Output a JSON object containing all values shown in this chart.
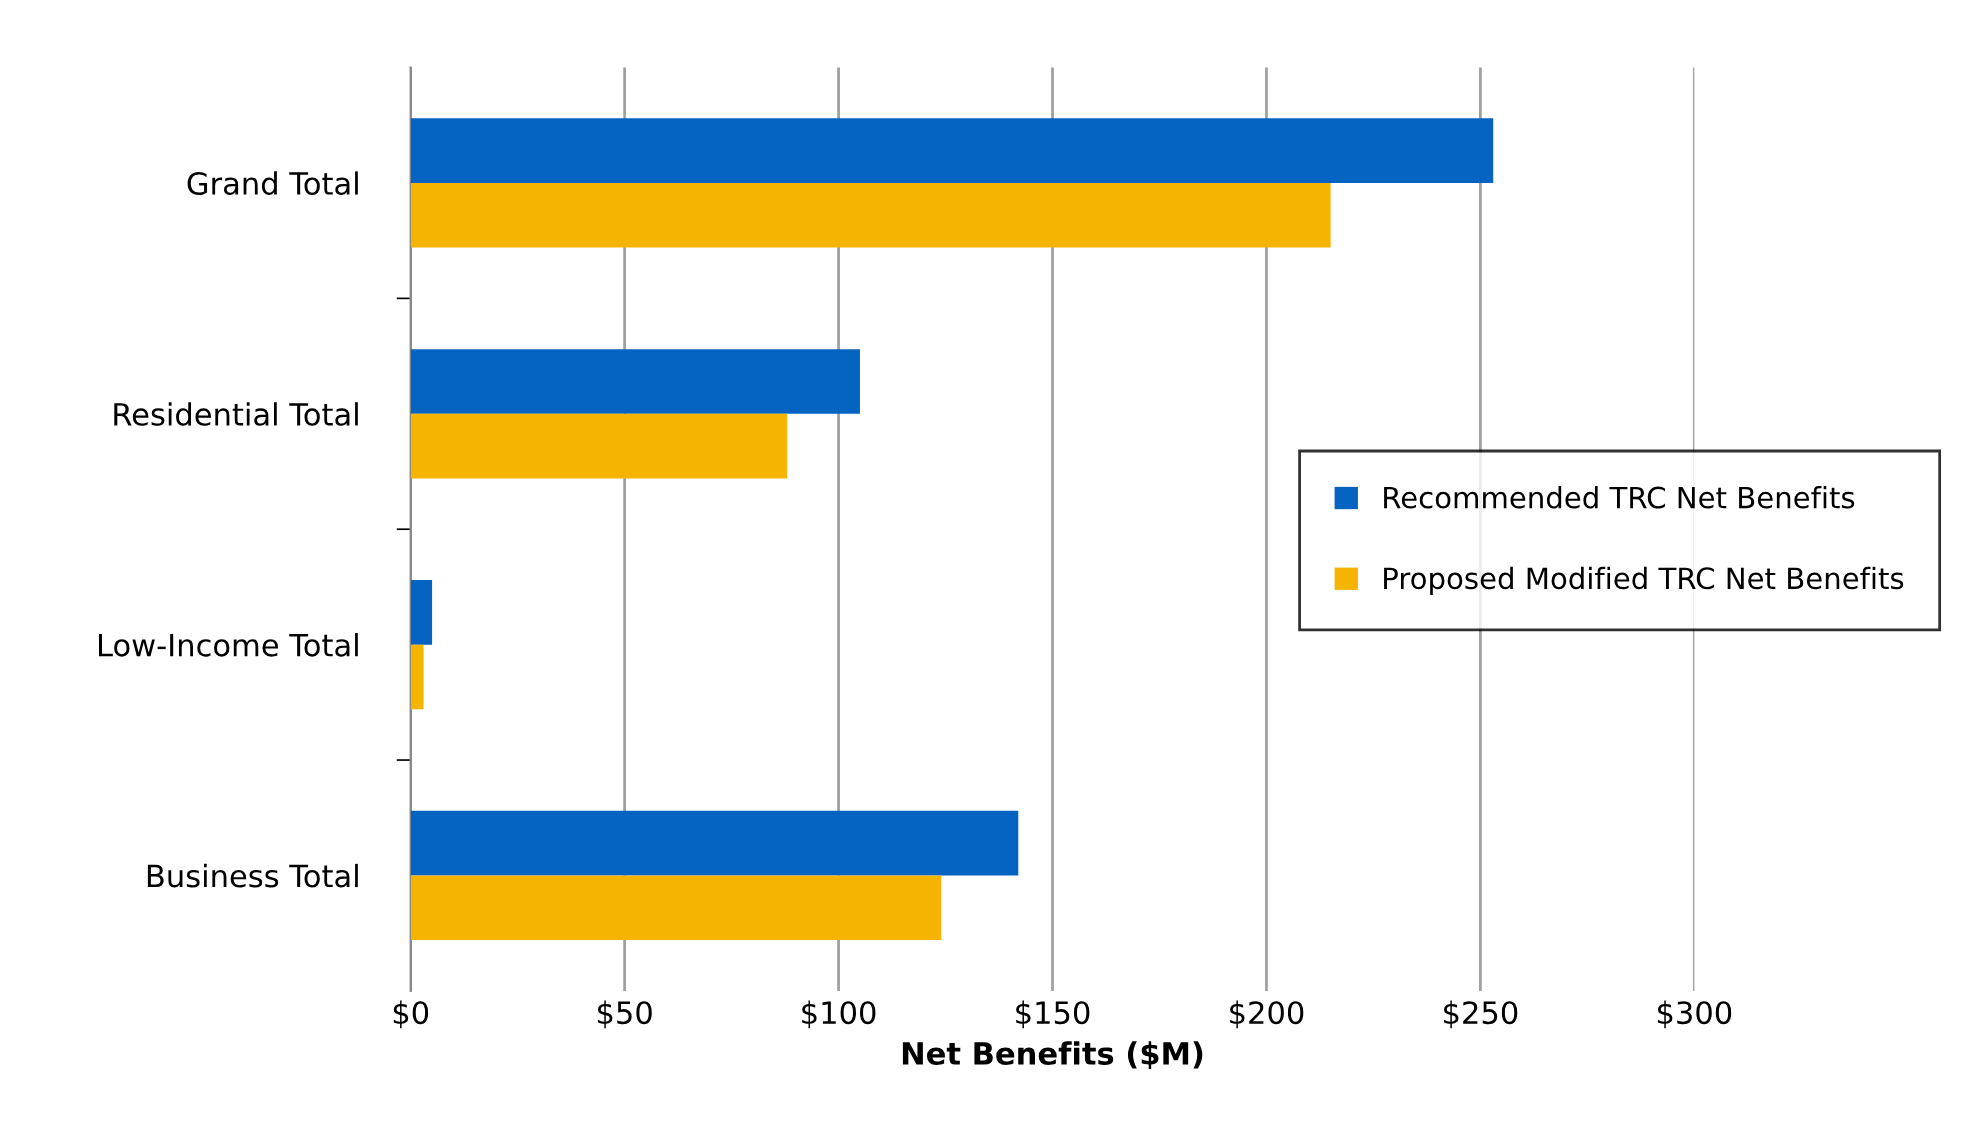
{
  "chart_data": {
    "type": "bar",
    "orientation": "horizontal",
    "xlabel": "Net Benefits ($M)",
    "categories": [
      "Grand Total",
      "Residential Total",
      "Low-Income Total",
      "Business Total"
    ],
    "series": [
      {
        "name": "Recommended TRC Net Benefits",
        "color": "#0563c1",
        "values": [
          253,
          105,
          5,
          142
        ]
      },
      {
        "name": "Proposed Modified TRC Net Benefits",
        "color": "#f5b400",
        "values": [
          215,
          88,
          3,
          124
        ]
      }
    ],
    "xlim": [
      0,
      300
    ],
    "xticks": [
      {
        "value": 0,
        "label": "$0"
      },
      {
        "value": 50,
        "label": "$50"
      },
      {
        "value": 100,
        "label": "$100"
      },
      {
        "value": 150,
        "label": "$150"
      },
      {
        "value": 200,
        "label": "$200"
      },
      {
        "value": 250,
        "label": "$250"
      },
      {
        "value": 300,
        "label": "$300"
      }
    ],
    "grid": "x",
    "legend": "right"
  }
}
